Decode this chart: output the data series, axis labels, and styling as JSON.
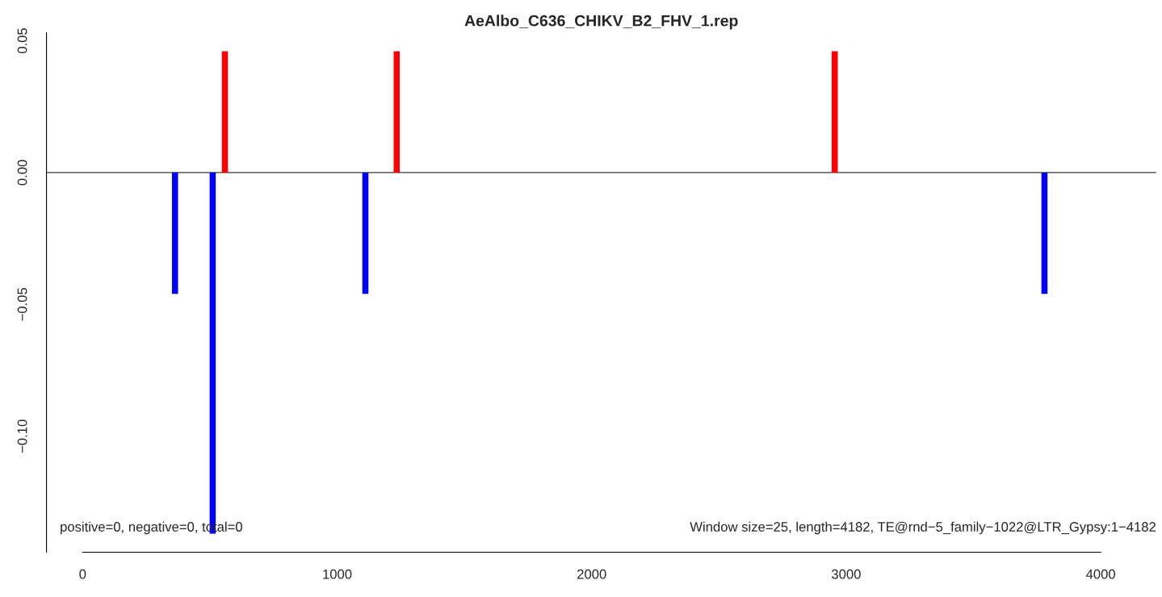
{
  "chart_data": {
    "type": "bar",
    "title": "AeAlbo_C636_CHIKV_B2_FHV_1.rep",
    "x": [
      363,
      511,
      559,
      1111,
      1234,
      2955,
      3779
    ],
    "values": [
      -0.046,
      -0.137,
      0.046,
      -0.046,
      0.046,
      0.046,
      -0.046
    ],
    "colors": [
      "#0000ff",
      "#0000ff",
      "#ff0000",
      "#0000ff",
      "#ff0000",
      "#ff0000",
      "#0000ff"
    ],
    "xlim": [
      -142,
      4218
    ],
    "ylim": [
      -0.144,
      0.053
    ],
    "xticks": [
      0,
      1000,
      2000,
      3000,
      4000
    ],
    "yticks": [
      {
        "value": -0.1,
        "label": "−0.10"
      },
      {
        "value": -0.05,
        "label": "−0.05"
      },
      {
        "value": 0,
        "label": "0.00"
      },
      {
        "value": 0.05,
        "label": "0.05"
      }
    ],
    "ref_lines": [
      {
        "axis": "y",
        "value": 0,
        "color": "#000000"
      }
    ],
    "annotations": [
      "positive=0, negative=0, total=0",
      "Window size=25, length=4182, TE@rnd−5_family−1022@LTR_Gypsy:1−4182"
    ],
    "grid": false,
    "legend": false
  }
}
